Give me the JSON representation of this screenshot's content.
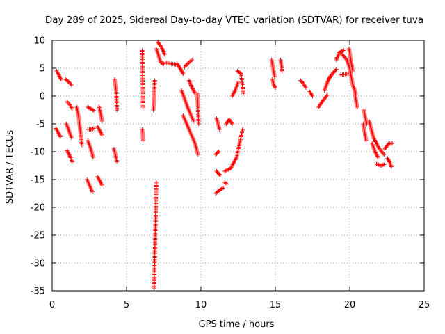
{
  "chart_data": {
    "type": "scatter",
    "title": "Day 289 of 2025, Sidereal Day-to-day VTEC variation (SDTVAR) for receiver tuva",
    "xlabel": "GPS time / hours",
    "ylabel": "SDTVAR / TECUs",
    "xlim": [
      0,
      25
    ],
    "ylim": [
      -35,
      10
    ],
    "xticks": [
      0,
      5,
      10,
      15,
      20,
      25
    ],
    "yticks": [
      -35,
      -30,
      -25,
      -20,
      -15,
      -10,
      -5,
      0,
      5,
      10
    ],
    "xtick_labels": [
      "0",
      "5",
      "10",
      "15",
      "20",
      "25"
    ],
    "ytick_labels": [
      "-35",
      "-30",
      "-25",
      "-20",
      "-15",
      "-10",
      "-5",
      "0",
      "5",
      "10"
    ],
    "grid": true,
    "marker": "plus",
    "color": "#ff0000",
    "arcs": [
      [
        [
          0.3,
          4.5
        ],
        [
          0.45,
          3.8
        ],
        [
          0.6,
          3.0
        ]
      ],
      [
        [
          0.25,
          -5.8
        ],
        [
          0.4,
          -6.5
        ],
        [
          0.55,
          -7.3
        ]
      ],
      [
        [
          0.9,
          3.0
        ],
        [
          1.1,
          2.6
        ],
        [
          1.3,
          2.0
        ]
      ],
      [
        [
          1.0,
          -1.0
        ],
        [
          1.2,
          -1.6
        ],
        [
          1.35,
          -2.3
        ]
      ],
      [
        [
          0.95,
          -5.0
        ],
        [
          1.1,
          -6.0
        ],
        [
          1.3,
          -7.5
        ]
      ],
      [
        [
          1.0,
          -9.8
        ],
        [
          1.2,
          -10.8
        ],
        [
          1.35,
          -11.8
        ]
      ],
      [
        [
          1.65,
          -2.0
        ],
        [
          1.8,
          -4.0
        ],
        [
          1.9,
          -6.5
        ],
        [
          2.0,
          -8.8
        ]
      ],
      [
        [
          2.4,
          -2.0
        ],
        [
          2.6,
          -2.3
        ],
        [
          2.8,
          -2.6
        ]
      ],
      [
        [
          2.4,
          -6.0
        ],
        [
          2.6,
          -6.0
        ],
        [
          2.8,
          -5.8
        ]
      ],
      [
        [
          2.4,
          -8.0
        ],
        [
          2.6,
          -9.5
        ],
        [
          2.75,
          -11.0
        ]
      ],
      [
        [
          2.35,
          -15.0
        ],
        [
          2.5,
          -16.0
        ],
        [
          2.7,
          -17.2
        ]
      ],
      [
        [
          3.15,
          -1.8
        ],
        [
          3.25,
          -3.0
        ],
        [
          3.35,
          -4.5
        ]
      ],
      [
        [
          3.05,
          -5.5
        ],
        [
          3.2,
          -6.2
        ],
        [
          3.35,
          -7.0
        ]
      ],
      [
        [
          3.05,
          -14.5
        ],
        [
          3.2,
          -15.2
        ],
        [
          3.35,
          -16.0
        ]
      ],
      [
        [
          4.15,
          -9.5
        ],
        [
          4.25,
          -10.5
        ],
        [
          4.35,
          -11.8
        ]
      ],
      [
        [
          4.2,
          3.0
        ],
        [
          4.3,
          1.0
        ],
        [
          4.35,
          -2.5
        ]
      ],
      [
        [
          6.05,
          8.2
        ],
        [
          6.1,
          1.0
        ],
        [
          6.1,
          -2.0
        ]
      ],
      [
        [
          6.05,
          -6.0
        ],
        [
          6.1,
          -7.0
        ],
        [
          6.1,
          -8.0
        ]
      ],
      [
        [
          6.9,
          2.8
        ],
        [
          6.85,
          0.0
        ],
        [
          6.8,
          -2.5
        ]
      ],
      [
        [
          7.0,
          -15.5
        ],
        [
          6.95,
          -22.0
        ],
        [
          6.9,
          -28.0
        ],
        [
          6.85,
          -34.5
        ]
      ],
      [
        [
          7.0,
          8.5
        ],
        [
          7.3,
          6.0
        ],
        [
          7.5,
          5.8
        ]
      ],
      [
        [
          7.1,
          9.7
        ],
        [
          7.35,
          8.8
        ],
        [
          7.55,
          7.5
        ]
      ],
      [
        [
          7.6,
          6.0
        ],
        [
          8.0,
          5.8
        ],
        [
          8.4,
          5.6
        ]
      ],
      [
        [
          8.4,
          5.8
        ],
        [
          8.6,
          5.0
        ],
        [
          8.8,
          4.0
        ]
      ],
      [
        [
          8.9,
          5.2
        ],
        [
          9.1,
          5.8
        ],
        [
          9.4,
          6.5
        ]
      ],
      [
        [
          8.7,
          1.0
        ],
        [
          9.1,
          -2.0
        ],
        [
          9.5,
          -4.5
        ]
      ],
      [
        [
          9.2,
          2.8
        ],
        [
          9.4,
          1.5
        ],
        [
          9.6,
          0.5
        ]
      ],
      [
        [
          8.8,
          -3.5
        ],
        [
          9.2,
          -6.0
        ],
        [
          9.6,
          -8.5
        ],
        [
          9.8,
          -10.5
        ]
      ],
      [
        [
          9.75,
          0.5
        ],
        [
          9.8,
          -2.0
        ],
        [
          9.85,
          -5.0
        ]
      ],
      [
        [
          11.05,
          -4.0
        ],
        [
          11.15,
          -5.0
        ],
        [
          11.25,
          -6.0
        ]
      ],
      [
        [
          11.0,
          -10.5
        ],
        [
          11.1,
          -10.2
        ],
        [
          11.2,
          -10.0
        ]
      ],
      [
        [
          11.05,
          -13.5
        ],
        [
          11.2,
          -14.0
        ],
        [
          11.3,
          -14.2
        ]
      ],
      [
        [
          11.0,
          -17.5
        ],
        [
          11.2,
          -17.0
        ],
        [
          11.5,
          -16.5
        ]
      ],
      [
        [
          11.6,
          -13.5
        ],
        [
          12.0,
          -13.0
        ],
        [
          12.4,
          -11.0
        ],
        [
          12.8,
          -6.0
        ]
      ],
      [
        [
          11.7,
          -5.0
        ],
        [
          11.9,
          -4.2
        ],
        [
          12.1,
          -5.0
        ]
      ],
      [
        [
          11.6,
          -15.5
        ],
        [
          11.75,
          -15.8
        ]
      ],
      [
        [
          12.1,
          0.0
        ],
        [
          12.3,
          1.0
        ],
        [
          12.5,
          2.5
        ]
      ],
      [
        [
          12.45,
          4.5
        ],
        [
          12.7,
          4.0
        ],
        [
          12.85,
          0.5
        ]
      ],
      [
        [
          14.75,
          6.5
        ],
        [
          14.85,
          5.0
        ],
        [
          14.95,
          3.5
        ]
      ],
      [
        [
          14.8,
          3.0
        ],
        [
          14.9,
          2.0
        ],
        [
          15.0,
          1.5
        ]
      ],
      [
        [
          15.35,
          6.5
        ],
        [
          15.4,
          5.5
        ],
        [
          15.45,
          4.3
        ]
      ],
      [
        [
          16.7,
          2.8
        ],
        [
          16.9,
          2.2
        ],
        [
          17.05,
          1.5
        ]
      ],
      [
        [
          17.3,
          0.8
        ],
        [
          17.5,
          0.0
        ]
      ],
      [
        [
          17.9,
          -2.0
        ],
        [
          18.2,
          -0.8
        ],
        [
          18.5,
          0.2
        ]
      ],
      [
        [
          18.3,
          1.0
        ],
        [
          18.5,
          2.5
        ],
        [
          18.7,
          3.5
        ]
      ],
      [
        [
          18.6,
          3.2
        ],
        [
          18.9,
          4.2
        ],
        [
          19.1,
          4.8
        ]
      ],
      [
        [
          19.1,
          6.5
        ],
        [
          19.3,
          7.8
        ],
        [
          19.6,
          8.2
        ]
      ],
      [
        [
          19.4,
          3.8
        ],
        [
          19.7,
          3.9
        ],
        [
          19.9,
          4.0
        ]
      ],
      [
        [
          19.5,
          7.5
        ],
        [
          19.8,
          6.5
        ],
        [
          20.0,
          5.0
        ],
        [
          20.2,
          2.0
        ],
        [
          20.4,
          0.5
        ]
      ],
      [
        [
          19.95,
          8.5
        ],
        [
          20.1,
          6.0
        ],
        [
          20.2,
          4.5
        ]
      ],
      [
        [
          20.3,
          1.5
        ],
        [
          20.4,
          -0.5
        ],
        [
          20.5,
          -2.0
        ]
      ],
      [
        [
          20.45,
          -1.5
        ],
        [
          20.5,
          -2.0
        ]
      ],
      [
        [
          20.95,
          -2.5
        ],
        [
          21.05,
          -4.0
        ],
        [
          21.15,
          -5.0
        ]
      ],
      [
        [
          20.9,
          -5.0
        ],
        [
          21.0,
          -6.5
        ],
        [
          21.1,
          -8.0
        ]
      ],
      [
        [
          21.3,
          -4.5
        ],
        [
          21.6,
          -7.5
        ],
        [
          22.0,
          -9.5
        ],
        [
          22.3,
          -10.5
        ]
      ],
      [
        [
          21.5,
          -8.5
        ],
        [
          21.7,
          -10.0
        ],
        [
          21.9,
          -11.0
        ]
      ],
      [
        [
          21.8,
          -12.2
        ],
        [
          22.1,
          -12.5
        ],
        [
          22.3,
          -12.3
        ]
      ],
      [
        [
          22.35,
          -9.5
        ],
        [
          22.6,
          -8.6
        ],
        [
          22.85,
          -8.5
        ]
      ],
      [
        [
          22.55,
          -11.2
        ],
        [
          22.7,
          -12.0
        ],
        [
          22.8,
          -12.7
        ]
      ]
    ]
  }
}
